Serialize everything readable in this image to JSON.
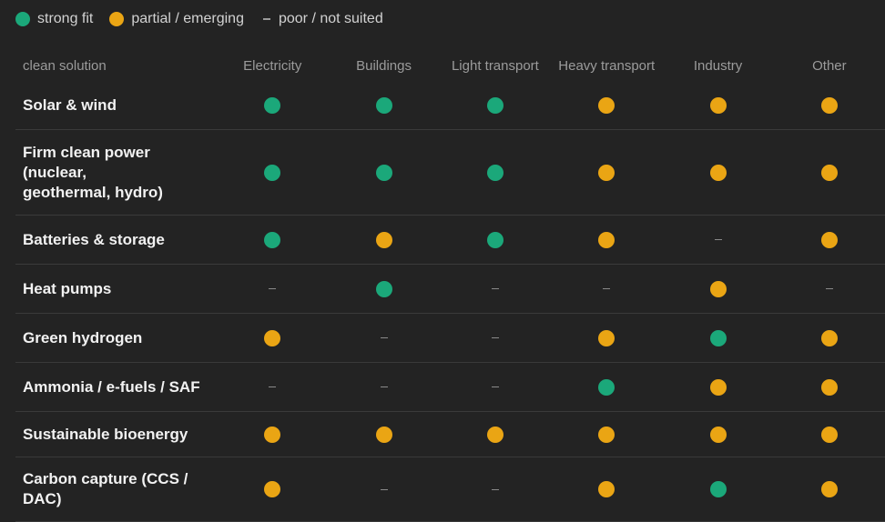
{
  "legend": {
    "strong": {
      "label": "strong fit",
      "color": "#1ba87a"
    },
    "partial": {
      "label": "partial / emerging",
      "color": "#eaa514"
    },
    "poor": {
      "label": "poor / not suited"
    }
  },
  "table": {
    "corner_label": "clean solution",
    "columns": [
      "Electricity",
      "Buildings",
      "Light transport",
      "Heavy transport",
      "Industry",
      "Other"
    ],
    "rows": [
      {
        "label": "Solar & wind",
        "cells": [
          "strong",
          "strong",
          "strong",
          "partial",
          "partial",
          "partial"
        ]
      },
      {
        "label": "Firm clean power (nuclear, geothermal, hydro)",
        "cells": [
          "strong",
          "strong",
          "strong",
          "partial",
          "partial",
          "partial"
        ]
      },
      {
        "label": "Batteries & storage",
        "cells": [
          "strong",
          "partial",
          "strong",
          "partial",
          "poor",
          "partial"
        ]
      },
      {
        "label": "Heat pumps",
        "cells": [
          "poor",
          "strong",
          "poor",
          "poor",
          "partial",
          "poor"
        ]
      },
      {
        "label": "Green hydrogen",
        "cells": [
          "partial",
          "poor",
          "poor",
          "partial",
          "strong",
          "partial"
        ]
      },
      {
        "label": "Ammonia / e-fuels / SAF",
        "cells": [
          "poor",
          "poor",
          "poor",
          "strong",
          "partial",
          "partial"
        ]
      },
      {
        "label": "Sustainable bioenergy",
        "cells": [
          "partial",
          "partial",
          "partial",
          "partial",
          "partial",
          "partial"
        ]
      },
      {
        "label": "Carbon capture (CCS / DAC)",
        "cells": [
          "partial",
          "poor",
          "poor",
          "partial",
          "strong",
          "partial"
        ]
      }
    ]
  }
}
